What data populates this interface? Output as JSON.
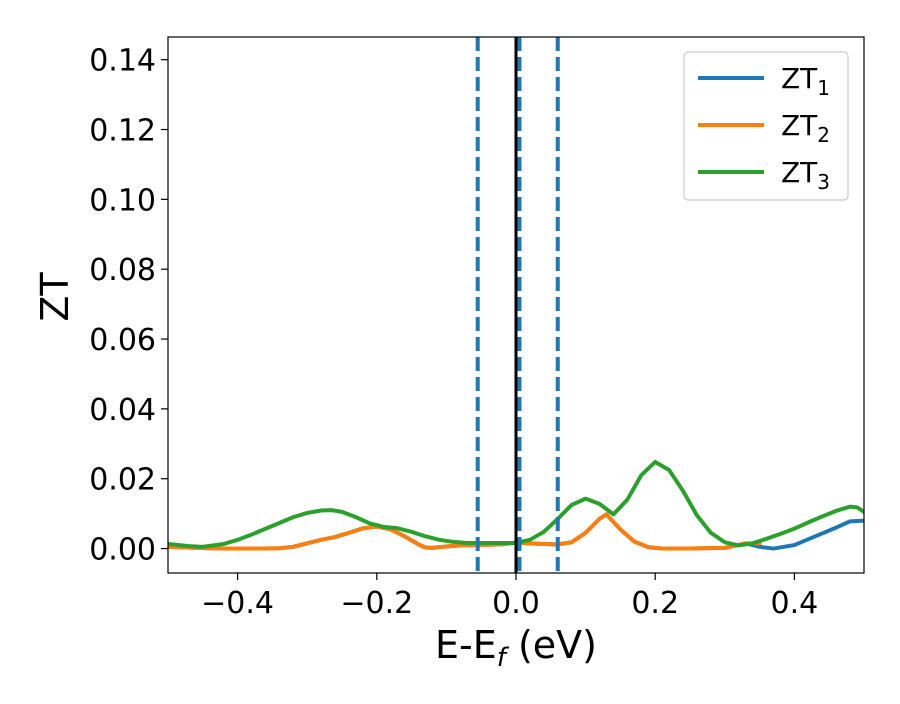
{
  "chart_data": {
    "type": "line",
    "xlabel_main": "E-E",
    "xlabel_sub": "f",
    "xlabel_unit": " (eV)",
    "ylabel": "ZT",
    "xlim": [
      -0.5,
      0.5
    ],
    "ylim": [
      -0.007,
      0.1465
    ],
    "xticks": [
      -0.4,
      -0.2,
      0.0,
      0.2,
      0.4
    ],
    "xtick_labels": [
      "−0.4",
      "−0.2",
      "0.0",
      "0.2",
      "0.4"
    ],
    "yticks": [
      0.0,
      0.02,
      0.04,
      0.06,
      0.08,
      0.1,
      0.12,
      0.14
    ],
    "ytick_labels": [
      "0.00",
      "0.02",
      "0.04",
      "0.06",
      "0.08",
      "0.10",
      "0.12",
      "0.14"
    ],
    "legend_position": "top-right",
    "grid": false,
    "vlines": [
      {
        "x": -0.055,
        "style": "dashed",
        "color": "#1f77b4"
      },
      {
        "x": 0.005,
        "style": "dashed",
        "color": "#1f77b4"
      },
      {
        "x": 0.06,
        "style": "dashed",
        "color": "#1f77b4"
      },
      {
        "x": 0.0,
        "style": "solid",
        "color": "#000000"
      }
    ],
    "series": [
      {
        "name_main": "ZT",
        "name_sub": "1",
        "color": "#1f77b4",
        "x": [
          -0.5,
          -0.46,
          -0.44,
          -0.42,
          -0.4,
          -0.38,
          -0.36,
          -0.34,
          -0.32,
          -0.3,
          -0.28,
          -0.26,
          -0.24,
          -0.22,
          -0.2,
          -0.18,
          -0.16,
          -0.14,
          -0.13,
          -0.12,
          -0.1,
          -0.08,
          -0.06,
          -0.04,
          -0.02,
          0.0,
          0.02,
          0.04,
          0.06,
          0.08,
          0.1,
          0.12,
          0.13,
          0.15,
          0.17,
          0.19,
          0.21,
          0.25,
          0.3,
          0.33,
          0.35,
          0.37,
          0.4,
          0.43,
          0.46,
          0.48,
          0.5
        ],
        "y": [
          0.0005,
          0.0002,
          0.0001,
          0.0,
          0.0,
          0.0,
          0.0,
          0.0001,
          0.0005,
          0.0015,
          0.0025,
          0.0033,
          0.0045,
          0.0058,
          0.0063,
          0.0055,
          0.0035,
          0.0012,
          0.0003,
          0.0002,
          0.0006,
          0.0009,
          0.001,
          0.0011,
          0.0012,
          0.0017,
          0.0015,
          0.0013,
          0.0012,
          0.0018,
          0.0045,
          0.0085,
          0.0098,
          0.0055,
          0.002,
          0.0004,
          0.0,
          0.0,
          0.0002,
          0.0015,
          0.0005,
          0.0,
          0.001,
          0.0035,
          0.006,
          0.0078,
          0.008
        ]
      },
      {
        "name_main": "ZT",
        "name_sub": "2",
        "color": "#ff7f0e",
        "x": [
          -0.5,
          -0.46,
          -0.44,
          -0.42,
          -0.4,
          -0.38,
          -0.36,
          -0.34,
          -0.32,
          -0.3,
          -0.28,
          -0.26,
          -0.24,
          -0.22,
          -0.2,
          -0.18,
          -0.16,
          -0.14,
          -0.13,
          -0.12,
          -0.1,
          -0.08,
          -0.06,
          -0.04,
          -0.02,
          0.0,
          0.02,
          0.04,
          0.06,
          0.08,
          0.1,
          0.12,
          0.13,
          0.15,
          0.17,
          0.19,
          0.21,
          0.25,
          0.3,
          0.33,
          0.35
        ],
        "y": [
          0.0005,
          0.0002,
          0.0001,
          0.0,
          0.0,
          0.0,
          0.0,
          0.0001,
          0.0005,
          0.0015,
          0.0025,
          0.0033,
          0.0045,
          0.0058,
          0.0063,
          0.0055,
          0.0035,
          0.0012,
          0.0003,
          0.0002,
          0.0006,
          0.0009,
          0.001,
          0.0011,
          0.0012,
          0.0017,
          0.0015,
          0.0013,
          0.0012,
          0.0018,
          0.0045,
          0.0085,
          0.0098,
          0.0055,
          0.002,
          0.0004,
          0.0,
          0.0,
          0.0002,
          0.0015,
          0.0015
        ]
      },
      {
        "name_main": "ZT",
        "name_sub": "3",
        "color": "#2ca02c",
        "x": [
          -0.5,
          -0.47,
          -0.45,
          -0.42,
          -0.4,
          -0.38,
          -0.35,
          -0.32,
          -0.3,
          -0.28,
          -0.265,
          -0.25,
          -0.23,
          -0.21,
          -0.19,
          -0.17,
          -0.15,
          -0.13,
          -0.11,
          -0.09,
          -0.07,
          -0.05,
          -0.03,
          -0.01,
          0.0,
          0.02,
          0.04,
          0.06,
          0.08,
          0.1,
          0.12,
          0.14,
          0.16,
          0.18,
          0.2,
          0.22,
          0.24,
          0.26,
          0.28,
          0.3,
          0.32,
          0.34,
          0.36,
          0.38,
          0.4,
          0.42,
          0.44,
          0.46,
          0.48,
          0.49,
          0.5
        ],
        "y": [
          0.0013,
          0.0007,
          0.0005,
          0.0013,
          0.0025,
          0.004,
          0.0065,
          0.009,
          0.0102,
          0.0109,
          0.011,
          0.0105,
          0.009,
          0.0072,
          0.0062,
          0.0058,
          0.0048,
          0.0035,
          0.0025,
          0.0019,
          0.0016,
          0.0016,
          0.0016,
          0.0016,
          0.0016,
          0.0025,
          0.0048,
          0.0085,
          0.0125,
          0.0143,
          0.0128,
          0.0098,
          0.014,
          0.021,
          0.0248,
          0.0225,
          0.0165,
          0.0095,
          0.0045,
          0.0018,
          0.0009,
          0.0015,
          0.0028,
          0.0042,
          0.0057,
          0.0075,
          0.0092,
          0.0108,
          0.012,
          0.0118,
          0.0105
        ]
      }
    ]
  }
}
